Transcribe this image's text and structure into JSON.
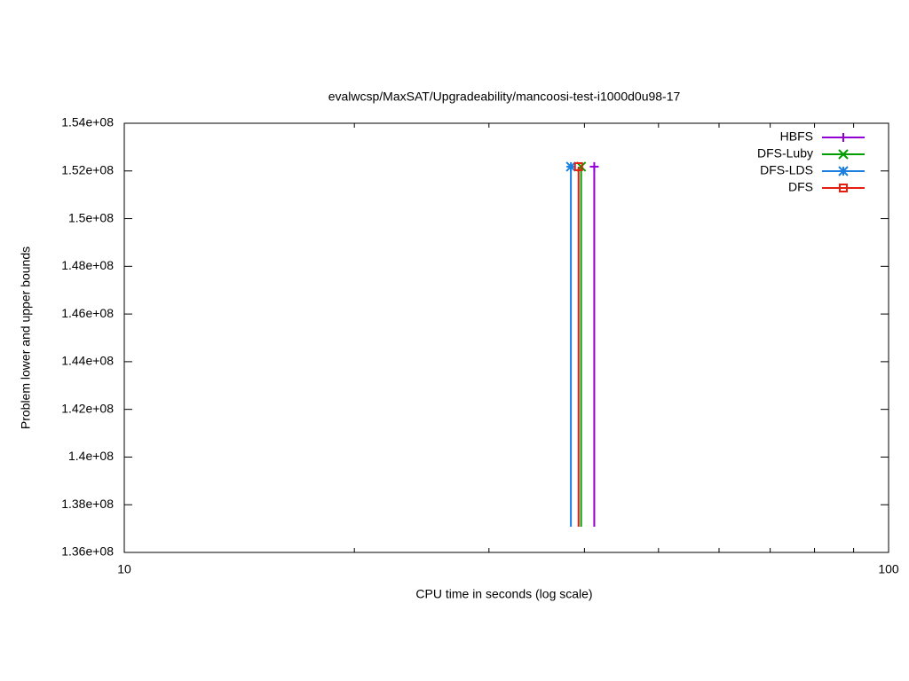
{
  "chart_data": {
    "type": "line",
    "title": "evalwcsp/MaxSAT/Upgradeability/mancoosi-test-i1000d0u98-17",
    "x_label": "CPU time in seconds (log scale)",
    "y_label": "Problem lower and upper bounds",
    "x_log": true,
    "xlim": [
      10,
      100
    ],
    "xticks": [
      10,
      100
    ],
    "ylim": [
      136000000,
      154000000
    ],
    "yticks": [
      {
        "value": 136000000,
        "label": "1.36e+08"
      },
      {
        "value": 138000000,
        "label": "1.38e+08"
      },
      {
        "value": 140000000,
        "label": "1.4e+08"
      },
      {
        "value": 142000000,
        "label": "1.42e+08"
      },
      {
        "value": 144000000,
        "label": "1.44e+08"
      },
      {
        "value": 146000000,
        "label": "1.46e+08"
      },
      {
        "value": 148000000,
        "label": "1.48e+08"
      },
      {
        "value": 150000000,
        "label": "1.5e+08"
      },
      {
        "value": 152000000,
        "label": "1.52e+08"
      },
      {
        "value": 154000000,
        "label": "1.54e+08"
      }
    ],
    "legend": "top-right",
    "series": [
      {
        "name": "HBFS",
        "color": "#9400d3",
        "marker": "plus",
        "x": [
          41.2,
          41.2
        ],
        "values": [
          137080000,
          152180000
        ]
      },
      {
        "name": "DFS-Luby",
        "color": "#009e00",
        "marker": "cross",
        "x": [
          39.6,
          39.6
        ],
        "values": [
          137080000,
          152180000
        ]
      },
      {
        "name": "DFS-LDS",
        "color": "#1a7fe0",
        "marker": "star",
        "x": [
          38.4,
          38.4
        ],
        "values": [
          137080000,
          152180000
        ]
      },
      {
        "name": "DFS",
        "color": "#e51e10",
        "marker": "square",
        "x": [
          39.3,
          39.3
        ],
        "values": [
          137080000,
          152180000
        ]
      }
    ]
  }
}
